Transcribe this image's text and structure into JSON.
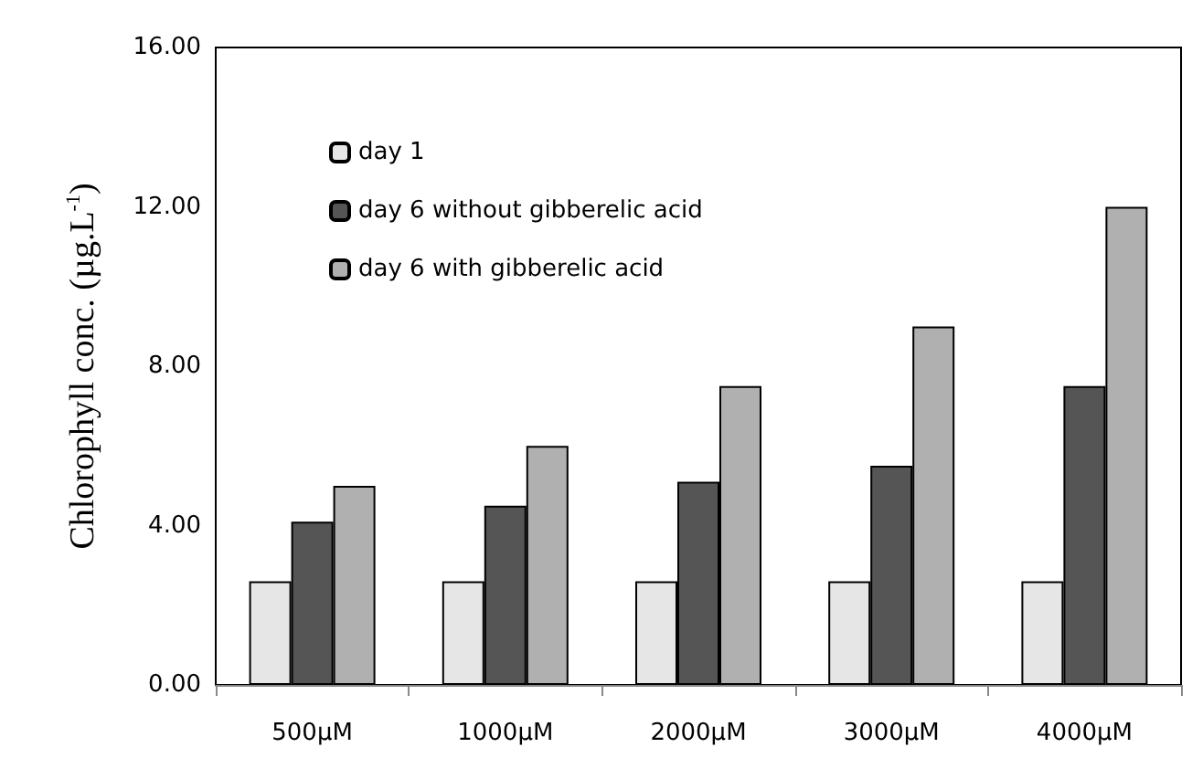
{
  "chart_data": {
    "type": "bar",
    "ylabel": "Chlorophyll conc. (µg.L$^{-1}$)",
    "categories": [
      "500µM",
      "1000µM",
      "2000µM",
      "3000µM",
      "4000µM"
    ],
    "series": [
      {
        "name": "day 1",
        "color": "#e6e6e6",
        "values": [
          2.6,
          2.6,
          2.6,
          2.6,
          2.6
        ]
      },
      {
        "name": "day 6 without gibberelic acid",
        "color": "#555555",
        "values": [
          4.1,
          4.5,
          5.1,
          5.5,
          7.5
        ]
      },
      {
        "name": "day 6 with gibberelic acid",
        "color": "#b0b0b0",
        "values": [
          5.0,
          6.0,
          7.5,
          9.0,
          12.0
        ]
      }
    ],
    "ylim": [
      0,
      16
    ],
    "yticks": [
      {
        "value": 0,
        "label": "0.00"
      },
      {
        "value": 4,
        "label": "4.00"
      },
      {
        "value": 8,
        "label": "8.00"
      },
      {
        "value": 12,
        "label": "12.00"
      },
      {
        "value": 16,
        "label": "16.00"
      }
    ],
    "grid": false,
    "legend": "top left"
  }
}
